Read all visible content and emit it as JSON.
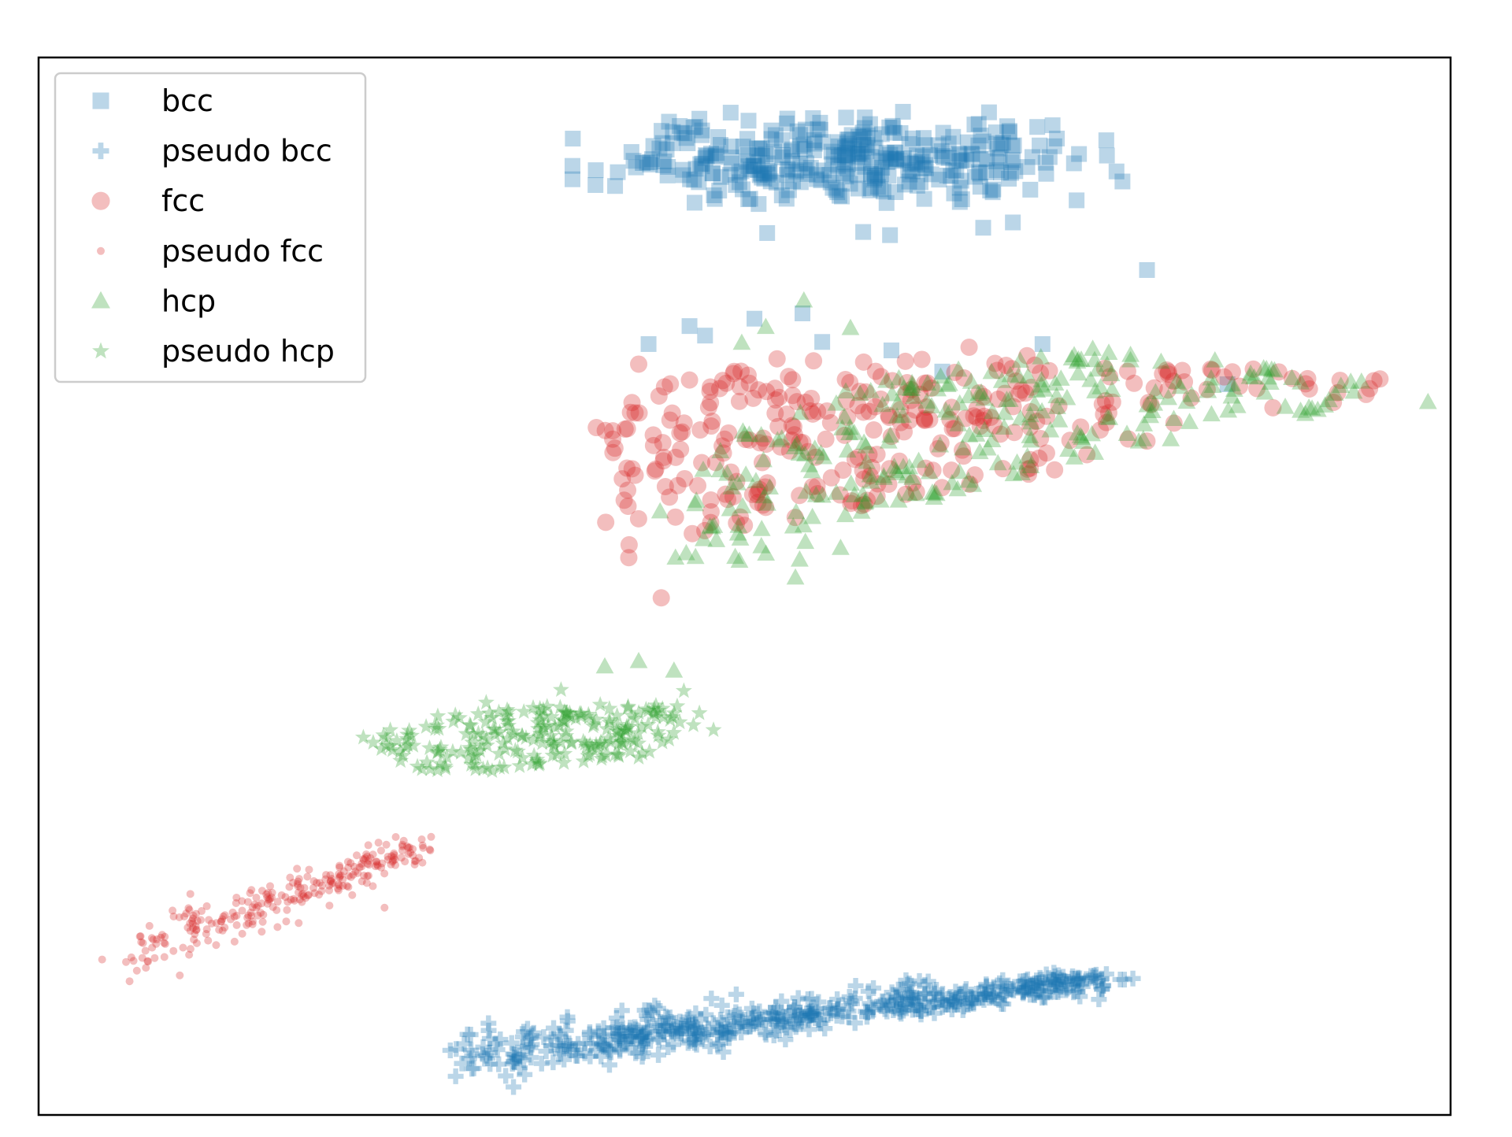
{
  "chart_data": {
    "type": "scatter",
    "title": "",
    "xlabel": "",
    "ylabel": "",
    "xlim": [
      0,
      100
    ],
    "ylim": [
      0,
      100
    ],
    "grid": false,
    "axis_ticks": false,
    "legend": {
      "placement": "top-left"
    },
    "series": [
      {
        "key": "bcc",
        "name": "bcc",
        "marker": "square",
        "color": "#1f77b4",
        "clusters": [
          {
            "cx": 57.0,
            "cy": 90.5,
            "sx": 9.0,
            "sy": 2.2,
            "n": 340
          }
        ],
        "points": [
          [
            51.6,
            83.4
          ],
          [
            58.4,
            83.5
          ],
          [
            60.3,
            83.2
          ],
          [
            66.9,
            83.9
          ],
          [
            69.0,
            84.4
          ],
          [
            78.5,
            79.9
          ],
          [
            55.5,
            73.1
          ],
          [
            46.1,
            74.6
          ],
          [
            47.2,
            73.7
          ],
          [
            43.2,
            72.9
          ],
          [
            60.4,
            72.3
          ],
          [
            71.1,
            72.9
          ],
          [
            50.7,
            75.3
          ],
          [
            54.1,
            75.8
          ],
          [
            84.2,
            69.1
          ],
          [
            64.0,
            70.3
          ]
        ]
      },
      {
        "key": "pseudo_bcc",
        "name": "pseudo bcc",
        "marker": "plus",
        "color": "#1f77b4",
        "line": {
          "x0": 29.5,
          "y0": 5.5,
          "x1": 75.5,
          "y1": 12.8,
          "count": 520,
          "spread": 1.25
        },
        "points": [
          [
            76.9,
            12.8
          ],
          [
            77.5,
            12.9
          ],
          [
            73.3,
            11.6
          ],
          [
            71.2,
            11.2
          ],
          [
            30.7,
            5.6
          ],
          [
            31.7,
            5.6
          ]
        ]
      },
      {
        "key": "fcc",
        "name": "fcc",
        "marker": "circle",
        "color": "#d62728",
        "polygon": [
          [
            39.5,
            63.8
          ],
          [
            43.0,
            68.9
          ],
          [
            55.0,
            72.0
          ],
          [
            65.0,
            71.5
          ],
          [
            79.0,
            70.5
          ],
          [
            95.0,
            70.6
          ],
          [
            96.0,
            68.0
          ],
          [
            88.0,
            66.7
          ],
          [
            70.0,
            60.3
          ],
          [
            55.0,
            56.6
          ],
          [
            41.7,
            51.9
          ],
          [
            39.5,
            57.0
          ]
        ],
        "count": 300,
        "points": [
          [
            44.1,
            48.9
          ],
          [
            41.8,
            52.7
          ],
          [
            39.5,
            65.0
          ],
          [
            65.9,
            72.6
          ],
          [
            70.0,
            71.8
          ],
          [
            75.5,
            70.6
          ],
          [
            81.0,
            70.4
          ],
          [
            92.0,
            68.3
          ],
          [
            95.0,
            69.6
          ],
          [
            42.5,
            71.0
          ],
          [
            46.1,
            69.5
          ],
          [
            52.3,
            71.5
          ]
        ]
      },
      {
        "key": "pseudo_fcc",
        "name": "pseudo fcc",
        "marker": "dot",
        "color": "#d62728",
        "line": {
          "x0": 6.0,
          "y0": 15.0,
          "x1": 27.0,
          "y1": 25.2,
          "count": 260,
          "spread": 1.5
        },
        "points": [
          [
            4.5,
            14.7
          ],
          [
            26.1,
            25.4
          ],
          [
            27.8,
            26.3
          ],
          [
            24.5,
            19.6
          ],
          [
            10.0,
            13.2
          ],
          [
            20.6,
            19.8
          ]
        ]
      },
      {
        "key": "hcp",
        "name": "hcp",
        "marker": "triangle",
        "color": "#2ca02c",
        "polygon": [
          [
            44.0,
            57.2
          ],
          [
            47.5,
            64.0
          ],
          [
            60.0,
            70.0
          ],
          [
            75.0,
            72.5
          ],
          [
            84.0,
            71.3
          ],
          [
            95.5,
            69.1
          ],
          [
            96.5,
            67.5
          ],
          [
            85.0,
            65.2
          ],
          [
            70.0,
            60.8
          ],
          [
            57.0,
            55.5
          ],
          [
            50.5,
            52.1
          ],
          [
            44.5,
            51.7
          ]
        ],
        "count": 260,
        "points": [
          [
            40.1,
            42.4
          ],
          [
            42.5,
            42.9
          ],
          [
            45.0,
            42.0
          ],
          [
            53.6,
            50.8
          ],
          [
            53.9,
            52.5
          ],
          [
            56.8,
            53.6
          ],
          [
            54.2,
            77.0
          ],
          [
            49.8,
            73.0
          ],
          [
            51.5,
            74.5
          ],
          [
            57.5,
            74.4
          ],
          [
            98.4,
            67.4
          ],
          [
            53.7,
            63.4
          ]
        ]
      },
      {
        "key": "pseudo_hcp",
        "name": "pseudo hcp",
        "marker": "star",
        "color": "#2ca02c",
        "polygon": [
          [
            23.0,
            35.7
          ],
          [
            28.0,
            37.7
          ],
          [
            37.0,
            38.8
          ],
          [
            45.0,
            39.0
          ],
          [
            47.0,
            37.2
          ],
          [
            44.0,
            33.9
          ],
          [
            38.0,
            33.3
          ],
          [
            30.0,
            32.2
          ],
          [
            23.5,
            33.3
          ]
        ],
        "count": 230,
        "points": [
          [
            47.8,
            36.4
          ],
          [
            46.8,
            38.0
          ],
          [
            45.7,
            40.1
          ],
          [
            37.0,
            40.2
          ],
          [
            31.7,
            39.0
          ],
          [
            42.5,
            33.8
          ],
          [
            23.0,
            35.7
          ]
        ]
      }
    ]
  }
}
